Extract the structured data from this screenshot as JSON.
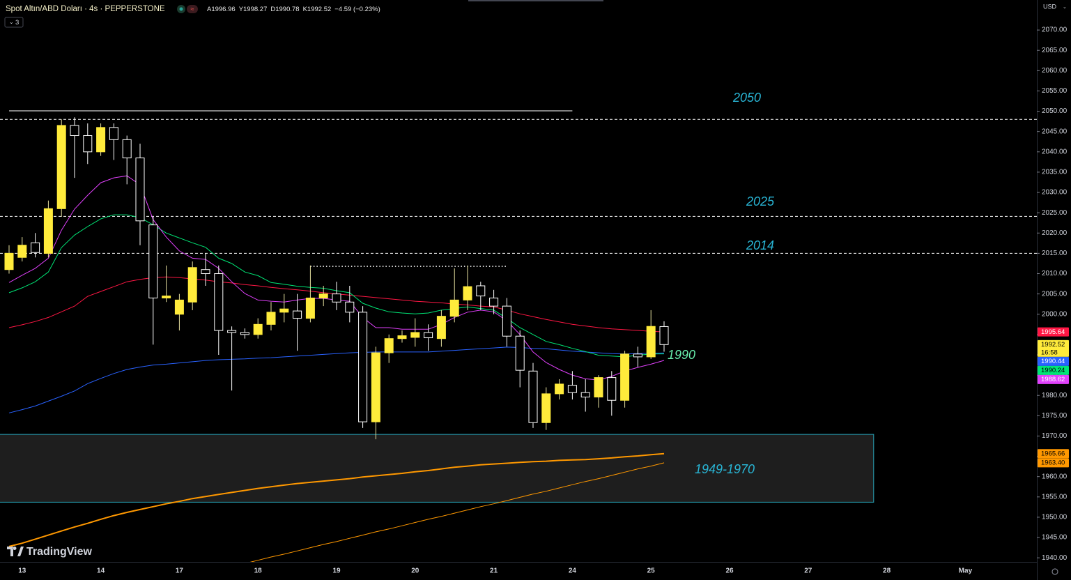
{
  "chart_data": {
    "type": "candlestick",
    "header": {
      "title": "Spot Altın/ABD Doları · 4s · PEPPERSTONE",
      "legend": [
        "A1996.96",
        "Y1998.27",
        "D1990.78",
        "K1992.52",
        "−4.59 (−0.23%)"
      ],
      "indicators": "3"
    },
    "currency": "USD",
    "watermark": "TradingView",
    "categories": [
      null,
      "13",
      null,
      null,
      null,
      null,
      null,
      "14",
      null,
      null,
      null,
      null,
      null,
      "17",
      null,
      null,
      null,
      null,
      null,
      "18",
      null,
      null,
      null,
      null,
      null,
      "19",
      null,
      null,
      null,
      null,
      null,
      "20",
      null,
      null,
      null,
      null,
      null,
      "21",
      null,
      null,
      null,
      null,
      null,
      "24",
      null,
      null,
      null,
      null,
      null,
      "25",
      null,
      null,
      null,
      null,
      null,
      "26",
      null,
      null,
      null,
      null,
      null,
      "27",
      null,
      null,
      null,
      null,
      null,
      "28",
      null,
      null,
      null,
      null,
      null,
      "May",
      null,
      null,
      null,
      null,
      null
    ],
    "candles": {
      "up_color": "#ffeb3b",
      "down_color": "#000000",
      "down_border": "#ffffff",
      "open": [
        2011,
        2014,
        2017.6,
        2015,
        2026,
        2046.5,
        2044,
        2040,
        2046,
        2043,
        2038.5,
        2022,
        2004,
        2000,
        2003,
        2011,
        2010,
        1996,
        1995.5,
        1995,
        1997.5,
        2000.5,
        2000.8,
        1999,
        2004,
        2005,
        2003,
        2000.5,
        1973.5,
        1990.5,
        1994,
        1994.3,
        1995.5,
        1994,
        1999.5,
        2003.5,
        2007,
        2004,
        2002,
        1994.6,
        1986,
        1973.3,
        1980.4,
        1982.5,
        1980.7,
        1979.6,
        1984.4,
        1978.8,
        1990.2,
        1989.5,
        1996.96,
        null,
        null,
        null,
        null,
        null,
        null,
        null,
        null,
        null,
        null,
        null,
        null,
        null,
        null,
        null,
        null,
        null,
        null,
        null,
        null,
        null,
        null,
        null,
        null,
        null,
        null,
        null,
        null
      ],
      "high": [
        2017,
        2019,
        2020,
        2028,
        2048,
        2048.5,
        2047,
        2047,
        2047,
        2044,
        2042,
        2024,
        2012,
        2005,
        2013,
        2015,
        2012,
        1997,
        1996.5,
        1999,
        2003,
        2005,
        2005,
        2012,
        2007,
        2008,
        2007,
        2002,
        1992,
        1995,
        1996,
        1999,
        1997.5,
        2001,
        2011.3,
        2012,
        2008,
        2006,
        2004,
        1996,
        1988,
        1982,
        1984,
        1986,
        1984,
        1985,
        1986,
        1991,
        1992,
        2001,
        1998.27,
        null,
        null,
        null,
        null,
        null,
        null,
        null,
        null,
        null,
        null,
        null,
        null,
        null,
        null,
        null,
        null,
        null,
        null,
        null,
        null,
        null,
        null,
        null,
        null,
        null,
        null,
        null,
        null
      ],
      "low": [
        2010,
        2013,
        2014,
        2014,
        2024,
        2033.6,
        2037,
        2039,
        2038,
        2032,
        2017,
        1992.5,
        2003,
        1996,
        2001,
        2007,
        1990,
        1981.2,
        1994,
        1994,
        1996,
        1998,
        1991,
        1998,
        2002,
        2001,
        1998,
        1972,
        1969.2,
        1988,
        1993,
        1992,
        1991,
        1992,
        1998,
        2001,
        2001,
        2000,
        1992,
        1982,
        1972,
        1971.5,
        1979,
        1979,
        1976,
        1977,
        1975,
        1977,
        1987,
        1989,
        1990.78,
        null,
        null,
        null,
        null,
        null,
        null,
        null,
        null,
        null,
        null,
        null,
        null,
        null,
        null,
        null,
        null,
        null,
        null,
        null,
        null,
        null,
        null,
        null,
        null,
        null,
        null,
        null,
        null
      ],
      "close": [
        2015,
        2017,
        2015.2,
        2026,
        2046.5,
        2044,
        2040,
        2046,
        2043,
        2038.5,
        2023,
        2004,
        2004.5,
        2003.5,
        2011.5,
        2010,
        1996,
        1995.5,
        1995,
        1997.5,
        2000.5,
        2001.3,
        1999,
        2004,
        2005,
        2003,
        2000.5,
        1973.5,
        1990.5,
        1994,
        1994.7,
        1995.5,
        1994.2,
        1999.5,
        2003.5,
        2006.8,
        2004.5,
        2002,
        1994.6,
        1986.2,
        1973.3,
        1980.4,
        1982.8,
        1980.7,
        1979.6,
        1984.4,
        1978.8,
        1990.2,
        1989.5,
        1997,
        1992.52,
        null,
        null,
        null,
        null,
        null,
        null,
        null,
        null,
        null,
        null,
        null,
        null,
        null,
        null,
        null,
        null,
        null,
        null,
        null,
        null,
        null,
        null,
        null,
        null,
        null,
        null,
        null,
        null
      ],
      "close_label": "1992.52",
      "countdown": "16:58"
    },
    "series": [
      {
        "color": "#ff1744",
        "width": 1,
        "last_label": "1995.64",
        "values": [
          1996.7,
          1997.4,
          1998.2,
          1999.2,
          2000.6,
          2002.0,
          2004.4,
          2005.6,
          2006.8,
          2008.0,
          2008.6,
          2009.0,
          2009.2,
          2009.0,
          2008.7,
          2008.4,
          2008.0,
          2007.7,
          2007.3,
          2007.0,
          2006.6,
          2006.3,
          2006.0,
          2005.7,
          2005.3,
          2005.0,
          2004.7,
          2004.4,
          2004.1,
          2003.8,
          2003.5,
          2003.2,
          2003.0,
          2002.8,
          2002.5,
          2002.3,
          2002.0,
          2001.8,
          2001.0,
          2000.1,
          1999.4,
          1998.7,
          1998.1,
          1997.5,
          1997.1,
          1996.7,
          1996.4,
          1996.2,
          1996.0,
          1995.8,
          1995.64,
          null,
          null,
          null,
          null,
          null,
          null,
          null,
          null,
          null,
          null,
          null,
          null,
          null,
          null,
          null,
          null,
          null,
          null,
          null,
          null,
          null,
          null,
          null,
          null,
          null,
          null,
          null,
          null
        ]
      },
      {
        "color": "#2962ff",
        "width": 1,
        "last_label": "1990.44",
        "values": [
          1975.7,
          1976.5,
          1977.4,
          1978.6,
          1979.8,
          1981.1,
          1982.9,
          1984.2,
          1985.4,
          1986.4,
          1987.0,
          1987.5,
          1987.7,
          1988.0,
          1988.3,
          1988.6,
          1988.8,
          1988.9,
          1989.0,
          1989.2,
          1989.3,
          1989.5,
          1989.7,
          1989.9,
          1990.1,
          1990.3,
          1990.5,
          1990.6,
          1990.7,
          1990.7,
          1990.7,
          1990.7,
          1990.7,
          1990.9,
          1991.1,
          1991.3,
          1991.5,
          1991.7,
          1991.9,
          1991.8,
          1991.6,
          1991.5,
          1991.2,
          1990.9,
          1990.7,
          1990.5,
          1990.3,
          1990.2,
          1990.3,
          1990.4,
          1990.44,
          null,
          null,
          null,
          null,
          null,
          null,
          null,
          null,
          null,
          null,
          null,
          null,
          null,
          null,
          null,
          null,
          null,
          null,
          null,
          null,
          null,
          null,
          null,
          null,
          null,
          null,
          null,
          null
        ]
      },
      {
        "color": "#00e676",
        "width": 1,
        "last_label": "1990.24",
        "values": [
          2005.3,
          2006.5,
          2008.0,
          2010.4,
          2016.4,
          2019.5,
          2021.6,
          2023.5,
          2024.5,
          2024.5,
          2023.8,
          2022.0,
          2020.0,
          2018.8,
          2017.6,
          2016.5,
          2013.8,
          2012.5,
          2010.4,
          2009.5,
          2007.8,
          2007.4,
          2006.9,
          2006.6,
          2006.4,
          2005.8,
          2005.3,
          2002.7,
          2001.5,
          2000.6,
          2000.3,
          2000.1,
          2000.3,
          2001.0,
          2001.4,
          2001.8,
          2001.4,
          2001.0,
          1999.0,
          1996.7,
          1995.0,
          1993.3,
          1992.5,
          1991.6,
          1990.8,
          1989.9,
          1989.7,
          1989.5,
          1989.9,
          1990.2,
          1990.24,
          null,
          null,
          null,
          null,
          null,
          null,
          null,
          null,
          null,
          null,
          null,
          null,
          null,
          null,
          null,
          null,
          null,
          null,
          null,
          null,
          null,
          null,
          null,
          null,
          null,
          null,
          null,
          null
        ]
      },
      {
        "color": "#e040fb",
        "width": 1,
        "last_label": "1988.62",
        "values": [
          2007.8,
          2009.6,
          2011.3,
          2013.8,
          2020.7,
          2025.9,
          2029.3,
          2032.4,
          2033.6,
          2034.1,
          2031.9,
          2023.3,
          2019.0,
          2015.6,
          2013.8,
          2013.5,
          2011.3,
          2008.0,
          2005.1,
          2003.5,
          2003.2,
          2003.0,
          2003.5,
          2003.9,
          2003.9,
          2003.5,
          2003.2,
          1999.2,
          1996.7,
          1996.7,
          1996.3,
          1996.3,
          1996.3,
          1997.5,
          1999.2,
          2000.5,
          2001.0,
          2000.6,
          1998.4,
          1995.0,
          1990.7,
          1988.1,
          1986.4,
          1985.0,
          1984.1,
          1983.8,
          1984.7,
          1986.0,
          1986.9,
          1987.7,
          1988.62,
          null,
          null,
          null,
          null,
          null,
          null,
          null,
          null,
          null,
          null,
          null,
          null,
          null,
          null,
          null,
          null,
          null,
          null,
          null,
          null,
          null,
          null,
          null,
          null,
          null,
          null,
          null,
          null
        ]
      },
      {
        "color": "#ff9800",
        "width": 2,
        "last_label": "1965.66",
        "values": [
          1942.8,
          1943.6,
          1944.6,
          1945.6,
          1946.6,
          1947.6,
          1948.5,
          1949.5,
          1950.4,
          1951.2,
          1951.9,
          1952.6,
          1953.3,
          1953.9,
          1954.6,
          1955.1,
          1955.6,
          1956.1,
          1956.6,
          1957.1,
          1957.5,
          1957.9,
          1958.3,
          1958.6,
          1958.9,
          1959.2,
          1959.5,
          1959.9,
          1960.2,
          1960.5,
          1960.8,
          1961.2,
          1961.5,
          1961.9,
          1962.3,
          1962.6,
          1962.9,
          1963.1,
          1963.3,
          1963.5,
          1963.7,
          1963.8,
          1964.0,
          1964.1,
          1964.2,
          1964.4,
          1964.6,
          1964.9,
          1965.1,
          1965.4,
          1965.66,
          null,
          null,
          null,
          null,
          null,
          null,
          null,
          null,
          null,
          null,
          null,
          null,
          null,
          null,
          null,
          null,
          null,
          null,
          null,
          null,
          null,
          null,
          null,
          null,
          null,
          null,
          null,
          null
        ]
      },
      {
        "color": "#ff9800",
        "width": 1,
        "last_label": "1963.40",
        "values": [
          null,
          null,
          null,
          null,
          null,
          null,
          null,
          null,
          null,
          null,
          null,
          null,
          null,
          null,
          null,
          null,
          null,
          null,
          1938.6,
          1939.4,
          1940.2,
          1940.9,
          1941.7,
          1942.5,
          1943.3,
          1944.0,
          1944.8,
          1945.6,
          1946.4,
          1947.1,
          1947.9,
          1948.7,
          1949.5,
          1950.2,
          1951.0,
          1951.8,
          1952.6,
          1953.3,
          1954.1,
          1954.9,
          1955.7,
          1956.4,
          1957.2,
          1958.0,
          1958.8,
          1959.5,
          1960.3,
          1961.1,
          1961.9,
          1962.6,
          1963.4,
          null,
          null,
          null,
          null,
          null,
          null,
          null,
          null,
          null,
          null,
          null,
          null,
          null,
          null,
          null,
          null,
          null,
          null,
          null,
          null,
          null,
          null,
          null,
          null,
          null,
          null,
          null,
          null
        ]
      }
    ],
    "levels": [
      {
        "value": 2050.1,
        "style": "solid",
        "color": "#ffffff",
        "start": 0,
        "end": 43
      },
      {
        "value": 2048.0,
        "style": "dashed",
        "color": "#ffffff"
      },
      {
        "value": 2024.1,
        "style": "dashed",
        "color": "#ffffff"
      },
      {
        "value": 2015.0,
        "style": "dashed",
        "color": "#ffffff"
      },
      {
        "value": 2011.8,
        "style": "dotted",
        "color": "#ffffff",
        "start": 23,
        "end": 38
      }
    ],
    "zone": {
      "low": 1953.7,
      "high": 1970.4,
      "end": 66,
      "color": "#26a3b8",
      "fill": "#1e1e1e"
    },
    "annotations": [
      {
        "text": "2050",
        "color": "#29b6d6"
      },
      {
        "text": "2025",
        "color": "#29b6d6"
      },
      {
        "text": "2014",
        "color": "#29b6d6"
      },
      {
        "text": "1990",
        "color": "#69f0ae"
      },
      {
        "text": "1949-1970",
        "color": "#29b6d6"
      }
    ],
    "ylim": [
      1939,
      2077.4
    ],
    "yticks": [
      {
        "value": 1940,
        "label": "1940.00"
      },
      {
        "value": 1945,
        "label": "1945.00"
      },
      {
        "value": 1950,
        "label": "1950.00"
      },
      {
        "value": 1955,
        "label": "1955.00"
      },
      {
        "value": 1960,
        "label": "1960.00"
      },
      {
        "value": 1965,
        "label": "1965.00"
      },
      {
        "value": 1970,
        "label": "1970.00"
      },
      {
        "value": 1975,
        "label": "1975.00"
      },
      {
        "value": 1980,
        "label": "1980.00"
      },
      {
        "value": 1985,
        "label": "1985.00"
      },
      {
        "value": 1990,
        "label": "1990.00"
      },
      {
        "value": 1995,
        "label": "1995.00"
      },
      {
        "value": 2000,
        "label": "2000.00"
      },
      {
        "value": 2005,
        "label": "2005.00"
      },
      {
        "value": 2010,
        "label": "2010.00"
      },
      {
        "value": 2015,
        "label": "2015.00"
      },
      {
        "value": 2020,
        "label": "2020.00"
      },
      {
        "value": 2025,
        "label": "2025.00"
      },
      {
        "value": 2030,
        "label": "2030.00"
      },
      {
        "value": 2035,
        "label": "2035.00"
      },
      {
        "value": 2040,
        "label": "2040.00"
      },
      {
        "value": 2045,
        "label": "2045.00"
      },
      {
        "value": 2050,
        "label": "2050.00"
      },
      {
        "value": 2055,
        "label": "2055.00"
      },
      {
        "value": 2060,
        "label": "2060.00"
      },
      {
        "value": 2065,
        "label": "2065.00"
      },
      {
        "value": 2070,
        "label": "2070.00"
      }
    ],
    "grid": false
  }
}
